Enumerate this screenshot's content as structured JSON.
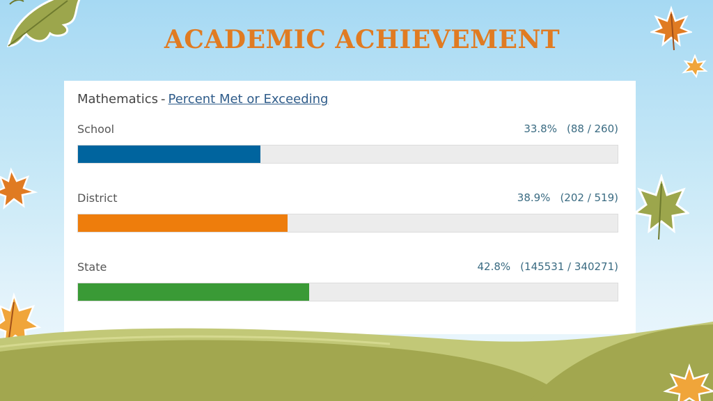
{
  "slide": {
    "title": "ACADEMIC ACHIEVEMENT"
  },
  "chart_data": {
    "type": "bar",
    "orientation": "horizontal",
    "subject": "Mathematics",
    "separator": "-",
    "title_link": "Percent Met or Exceeding",
    "xlim": [
      0,
      100
    ],
    "rows": [
      {
        "label": "School",
        "value": 33.8,
        "value_text": "33.8%",
        "count_text": "(88 / 260)",
        "color": "#00649e"
      },
      {
        "label": "District",
        "value": 38.9,
        "value_text": "38.9%",
        "count_text": "(202 / 519)",
        "color": "#ee7d0c"
      },
      {
        "label": "State",
        "value": 42.8,
        "value_text": "42.8%",
        "count_text": "(145531 / 340271)",
        "color": "#3a9a36"
      }
    ]
  },
  "colors": {
    "title": "#e07b22",
    "sky": "#a6d9f3",
    "hill_light": "#c2c877",
    "hill_dark": "#a2a74f"
  }
}
